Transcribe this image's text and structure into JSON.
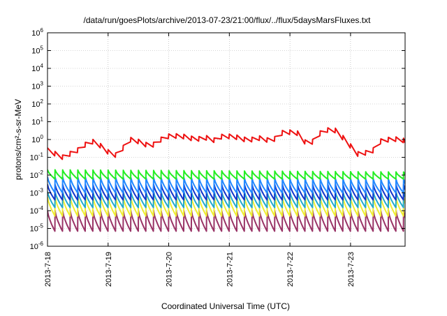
{
  "chart_data": {
    "type": "line",
    "title": "/data/run/goesPlots/archive/2013-07-23/21:00/flux/../flux/5daysMarsFluxes.txt",
    "xlabel": "Coordinated Universal Time (UTC)",
    "ylabel": "protons/cm²-s-sr-MeV",
    "y_scale": "log",
    "ylim": [
      1e-06,
      1000000.0
    ],
    "y_tick_exponents": [
      -6,
      -5,
      -4,
      -3,
      -2,
      -1,
      0,
      1,
      2,
      3,
      4,
      5,
      6
    ],
    "x_tick_labels": [
      "2013-7-18",
      "2013-7-19",
      "2013-7-20",
      "2013-7-21",
      "2013-7-22",
      "2013-7-23"
    ],
    "x_range_days": [
      0,
      5.9
    ],
    "grid": true,
    "series": [
      {
        "color": "#ee1111",
        "sawtooth_period_hours": 3,
        "x": [
          0,
          0.25,
          0.5,
          0.7,
          0.8,
          1.0,
          1.15,
          1.35,
          1.45,
          1.7,
          1.95,
          2.2,
          2.45,
          2.6,
          2.75,
          2.9,
          3.1,
          3.3,
          3.5,
          3.7,
          3.9,
          4.15,
          4.3,
          4.55,
          4.75,
          4.95,
          5.1,
          5.35,
          5.5,
          5.7,
          5.9
        ],
        "values": [
          0.25,
          0.1,
          0.25,
          0.8,
          0.7,
          0.2,
          0.12,
          1.0,
          0.9,
          0.4,
          1.5,
          1.6,
          1.0,
          1.3,
          0.9,
          1.6,
          1.4,
          0.9,
          1.2,
          0.8,
          2.8,
          2.2,
          0.4,
          3.5,
          3.2,
          0.7,
          0.15,
          0.2,
          0.8,
          1.1,
          0.85
        ]
      },
      {
        "color": "#22ee22",
        "sawtooth_period_hours": 3,
        "x": [
          0,
          5.9
        ],
        "values": [
          0.02,
          0.015
        ],
        "min": 0.006
      },
      {
        "color": "#2288ff",
        "sawtooth_period_hours": 3,
        "x": [
          0,
          5.9
        ],
        "values": [
          0.008,
          0.006
        ],
        "min": 0.001
      },
      {
        "color": "#1133cc",
        "sawtooth_period_hours": 3,
        "x": [
          0,
          5.9
        ],
        "values": [
          0.003,
          0.003
        ],
        "min": 0.0004
      },
      {
        "color": "#22aacc",
        "sawtooth_period_hours": 3,
        "x": [
          0,
          5.9
        ],
        "values": [
          0.0012,
          0.0012
        ],
        "min": 0.00015
      },
      {
        "color": "#eeee33",
        "sawtooth_period_hours": 3,
        "x": [
          0,
          5.9
        ],
        "values": [
          0.0006,
          0.0006
        ],
        "min": 5e-05
      },
      {
        "color": "#993366",
        "sawtooth_period_hours": 3,
        "x": [
          0,
          5.9
        ],
        "values": [
          0.0001,
          0.0001
        ],
        "min": 7e-06
      }
    ]
  }
}
